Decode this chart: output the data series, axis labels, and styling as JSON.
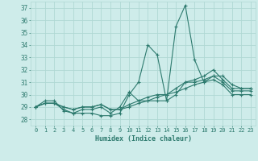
{
  "title": "",
  "xlabel": "Humidex (Indice chaleur)",
  "ylabel": "",
  "bg_color": "#ceecea",
  "grid_color": "#b0d8d4",
  "line_color": "#2d7a6e",
  "x": [
    0,
    1,
    2,
    3,
    4,
    5,
    6,
    7,
    8,
    9,
    10,
    11,
    12,
    13,
    14,
    15,
    16,
    17,
    18,
    19,
    20,
    21,
    22,
    23
  ],
  "series": [
    [
      29.0,
      29.5,
      29.5,
      28.7,
      28.5,
      28.5,
      28.5,
      28.3,
      28.3,
      28.5,
      30.0,
      31.0,
      34.0,
      33.2,
      29.5,
      35.5,
      37.2,
      32.8,
      31.0,
      31.5,
      31.5,
      30.8,
      30.5,
      30.5
    ],
    [
      29.0,
      29.3,
      29.3,
      28.8,
      28.5,
      28.8,
      28.8,
      29.0,
      28.5,
      29.0,
      30.2,
      29.5,
      29.5,
      29.5,
      29.5,
      30.0,
      31.0,
      31.2,
      31.5,
      32.0,
      31.2,
      30.5,
      30.5,
      30.5
    ],
    [
      29.0,
      29.3,
      29.3,
      29.0,
      28.8,
      29.0,
      29.0,
      29.2,
      28.8,
      28.8,
      29.2,
      29.5,
      29.8,
      30.0,
      30.0,
      30.5,
      31.0,
      31.0,
      31.2,
      31.5,
      31.0,
      30.3,
      30.3,
      30.3
    ],
    [
      29.0,
      29.3,
      29.3,
      29.0,
      28.8,
      29.0,
      29.0,
      29.2,
      28.8,
      28.8,
      29.0,
      29.3,
      29.5,
      29.8,
      30.0,
      30.2,
      30.5,
      30.8,
      31.0,
      31.2,
      30.8,
      30.0,
      30.0,
      30.0
    ]
  ],
  "ylim": [
    27.5,
    37.5
  ],
  "yticks": [
    28,
    29,
    30,
    31,
    32,
    33,
    34,
    35,
    36,
    37
  ],
  "xtick_labels": [
    "0",
    "1",
    "2",
    "3",
    "4",
    "5",
    "6",
    "7",
    "8",
    "9",
    "10",
    "11",
    "12",
    "13",
    "14",
    "15",
    "16",
    "17",
    "18",
    "19",
    "20",
    "21",
    "22",
    "23"
  ],
  "font_color": "#2d7a6e",
  "marker": "+"
}
